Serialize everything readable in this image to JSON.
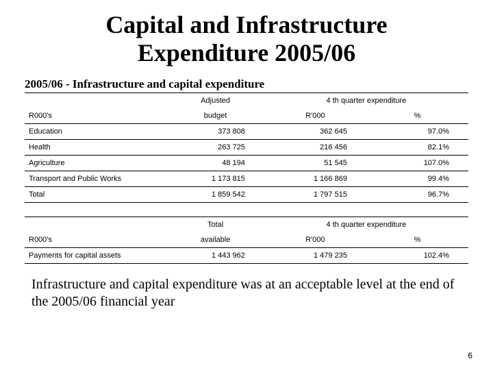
{
  "title_line1": "Capital and Infrastructure",
  "title_line2": "Expenditure 2005/06",
  "subtitle": "2005/06 - Infrastructure and capital expenditure",
  "table1": {
    "h_adjusted": "Adjusted",
    "h_q4": "4 th quarter expenditure",
    "h_r000s": "R000's",
    "h_budget": "budget",
    "h_r000": "R'000",
    "h_pct": "%",
    "rows": [
      {
        "label": "Education",
        "budget": "373 808",
        "r000": "362 645",
        "pct": "97.0%"
      },
      {
        "label": "Health",
        "budget": "263 725",
        "r000": "216 456",
        "pct": "82.1%"
      },
      {
        "label": "Agriculture",
        "budget": "48 194",
        "r000": "51 545",
        "pct": "107.0%"
      },
      {
        "label": "Transport and Public Works",
        "budget": "1 173 815",
        "r000": "1 166 869",
        "pct": "99.4%"
      },
      {
        "label": "Total",
        "budget": "1 859 542",
        "r000": "1 797 515",
        "pct": "96.7%"
      }
    ]
  },
  "table2": {
    "h_total": "Total",
    "h_q4": "4 th quarter expenditure",
    "h_r000s": "R000's",
    "h_available": "available",
    "h_r000": "R'000",
    "h_pct": "%",
    "rows": [
      {
        "label": "Payments for capital assets",
        "available": "1 443 962",
        "r000": "1 479 235",
        "pct": "102.4%"
      }
    ]
  },
  "conclusion": "Infrastructure and capital expenditure was at an acceptable level at the end of the 2005/06 financial year",
  "pagenum": "6"
}
